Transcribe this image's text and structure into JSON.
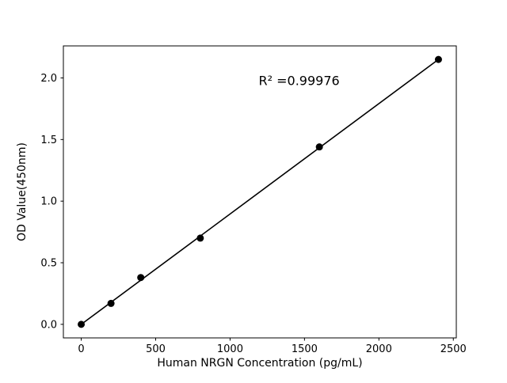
{
  "chart_data": {
    "type": "scatter",
    "title": "",
    "xlabel": "Human NRGN Concentration (pg/mL)",
    "ylabel": "OD Value(450nm)",
    "x": [
      0,
      200,
      400,
      800,
      1600,
      2400
    ],
    "y": [
      0.0,
      0.17,
      0.38,
      0.7,
      1.44,
      2.15
    ],
    "fit_line": {
      "x": [
        0,
        2400
      ],
      "y": [
        0.0,
        2.15
      ]
    },
    "annotation": "R² =0.99976",
    "annotation_pos": {
      "x_frac": 0.6,
      "y_frac": 0.88
    },
    "r_squared": 0.99976,
    "xlim": [
      -120,
      2520
    ],
    "ylim": [
      -0.11,
      2.26
    ],
    "xticks": [
      0,
      500,
      1000,
      1500,
      2000,
      2500
    ],
    "xtick_labels": [
      "0",
      "500",
      "1000",
      "1500",
      "2000",
      "2500"
    ],
    "yticks": [
      0.0,
      0.5,
      1.0,
      1.5,
      2.0
    ],
    "ytick_labels": [
      "0.0",
      "0.5",
      "1.0",
      "1.5",
      "2.0"
    ],
    "grid": false,
    "legend": "none",
    "marker_color": "#000000",
    "line_color": "#000000",
    "axis_color": "#000000",
    "background": "#ffffff"
  }
}
